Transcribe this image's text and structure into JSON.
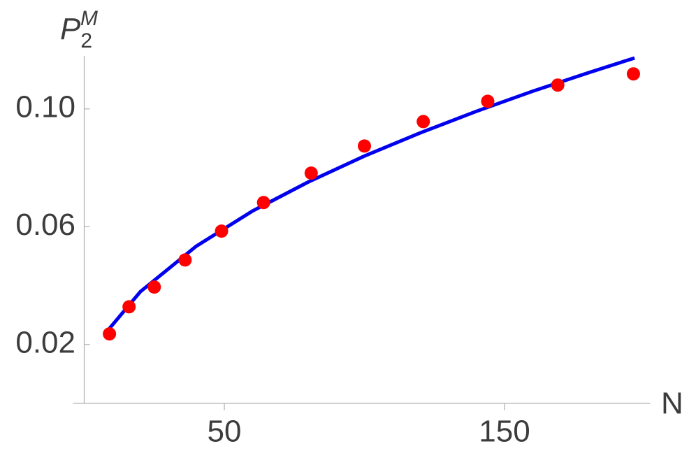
{
  "chart_data": {
    "type": "scatter",
    "x_label": "N",
    "y_label": {
      "base": "P",
      "sub": "2",
      "sup": "M"
    },
    "xlim": [
      -4,
      202
    ],
    "ylim": [
      0,
      0.118
    ],
    "xticks": [
      50,
      150
    ],
    "yticks": [
      0.02,
      0.06,
      {
        "value": 0.1,
        "label": "0.10"
      }
    ],
    "series": [
      {
        "type": "scatter",
        "color": "#ff0000",
        "x": [
          9,
          16,
          25,
          36,
          49,
          64,
          81,
          100,
          121,
          144,
          169,
          196
        ],
        "values": [
          0.0236,
          0.0328,
          0.0395,
          0.0487,
          0.0585,
          0.0682,
          0.0782,
          0.0874,
          0.0957,
          0.1026,
          0.1081,
          0.1119
        ]
      },
      {
        "type": "line",
        "color": "#0000ee",
        "x": [
          8.6,
          20,
          40,
          60,
          80,
          100,
          120,
          140,
          160,
          180,
          196.4
        ],
        "values": [
          0.025,
          0.0379,
          0.0534,
          0.0653,
          0.0752,
          0.084,
          0.0919,
          0.0992,
          0.106,
          0.1123,
          0.1173
        ]
      }
    ]
  }
}
